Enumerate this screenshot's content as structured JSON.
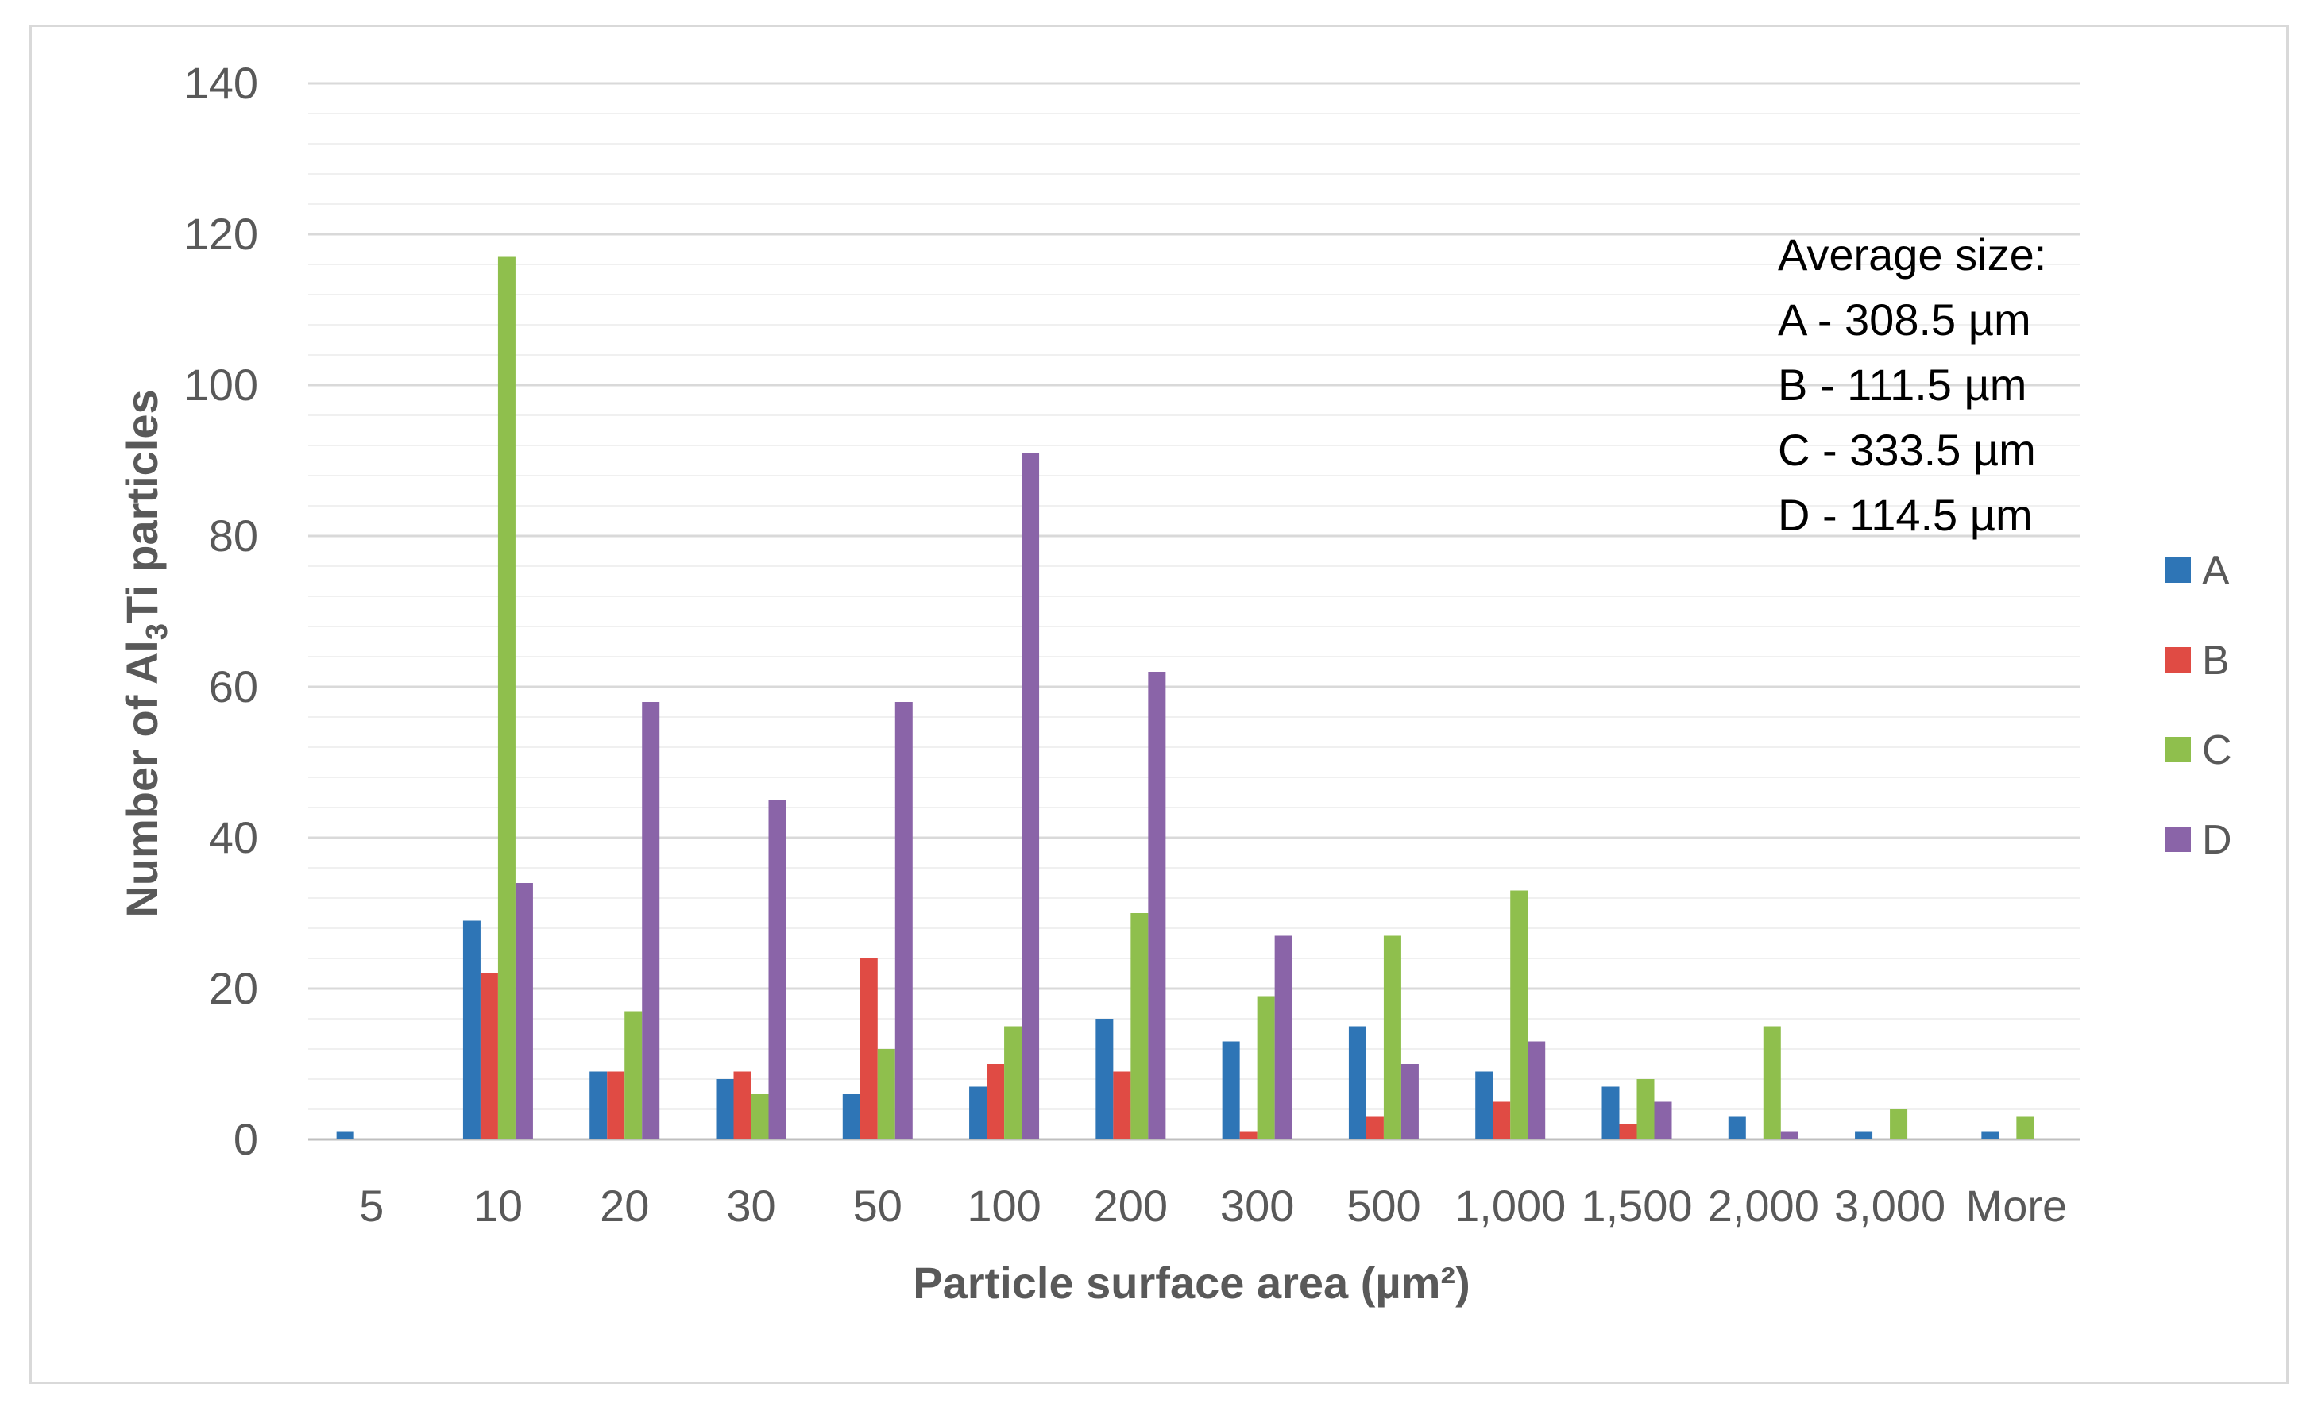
{
  "chart_data": {
    "type": "bar",
    "title": "",
    "xlabel": "Particle surface area (µm²)",
    "ylabel": {
      "prefix": "Number of Al",
      "subscript": "3",
      "suffix": "Ti particles"
    },
    "ylim": [
      0,
      140
    ],
    "ytick_step": 20,
    "minor_step": 4,
    "grid": true,
    "legend_position": "right",
    "categories": [
      "5",
      "10",
      "20",
      "30",
      "50",
      "100",
      "200",
      "300",
      "500",
      "1,000",
      "1,500",
      "2,000",
      "3,000",
      "More"
    ],
    "series": [
      {
        "name": "A",
        "color": "#2e75b6",
        "values": [
          1,
          29,
          9,
          8,
          6,
          7,
          16,
          13,
          15,
          9,
          7,
          3,
          1,
          1
        ]
      },
      {
        "name": "B",
        "color": "#e04b44",
        "values": [
          0,
          22,
          9,
          9,
          24,
          10,
          9,
          1,
          3,
          5,
          2,
          0,
          0,
          0
        ]
      },
      {
        "name": "C",
        "color": "#8fbf4d",
        "values": [
          0,
          117,
          17,
          6,
          12,
          15,
          30,
          19,
          27,
          33,
          8,
          15,
          4,
          3
        ]
      },
      {
        "name": "D",
        "color": "#8a64a8",
        "values": [
          0,
          34,
          58,
          45,
          58,
          91,
          62,
          27,
          10,
          13,
          5,
          1,
          0,
          0
        ]
      }
    ],
    "annotation": [
      "Average size:",
      "A - 308.5 µm",
      "B - 111.5 µm",
      "C - 333.5 µm",
      "D - 114.5 µm"
    ]
  }
}
